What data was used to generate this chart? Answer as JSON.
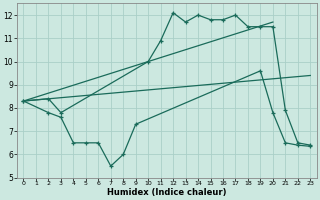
{
  "xlabel": "Humidex (Indice chaleur)",
  "bg_color": "#cce8e0",
  "grid_color": "#aacfc8",
  "line_color": "#1a6b5a",
  "xlim": [
    -0.5,
    23.5
  ],
  "ylim": [
    5,
    12.5
  ],
  "yticks": [
    5,
    6,
    7,
    8,
    9,
    10,
    11,
    12
  ],
  "xticks": [
    0,
    1,
    2,
    3,
    4,
    5,
    6,
    7,
    8,
    9,
    10,
    11,
    12,
    13,
    14,
    15,
    16,
    17,
    18,
    19,
    20,
    21,
    22,
    23
  ],
  "line1_x": [
    0,
    2,
    3,
    10,
    11,
    12,
    13,
    14,
    15,
    16,
    17,
    18,
    19,
    20,
    21,
    22,
    23
  ],
  "line1_y": [
    8.3,
    8.4,
    7.8,
    10.0,
    10.9,
    12.1,
    11.7,
    12.0,
    11.8,
    11.8,
    12.0,
    11.5,
    11.5,
    11.5,
    7.9,
    6.5,
    6.4
  ],
  "line2_x": [
    0,
    2,
    3,
    4,
    5,
    6,
    7,
    8,
    9,
    19,
    20,
    21,
    22,
    23
  ],
  "line2_y": [
    8.3,
    7.8,
    7.6,
    6.5,
    6.5,
    6.5,
    5.5,
    6.0,
    7.3,
    9.6,
    7.8,
    6.5,
    6.4,
    6.35
  ],
  "line3_x": [
    0,
    20
  ],
  "line3_y": [
    8.3,
    11.7
  ],
  "line4_x": [
    0,
    23
  ],
  "line4_y": [
    8.3,
    9.4
  ]
}
